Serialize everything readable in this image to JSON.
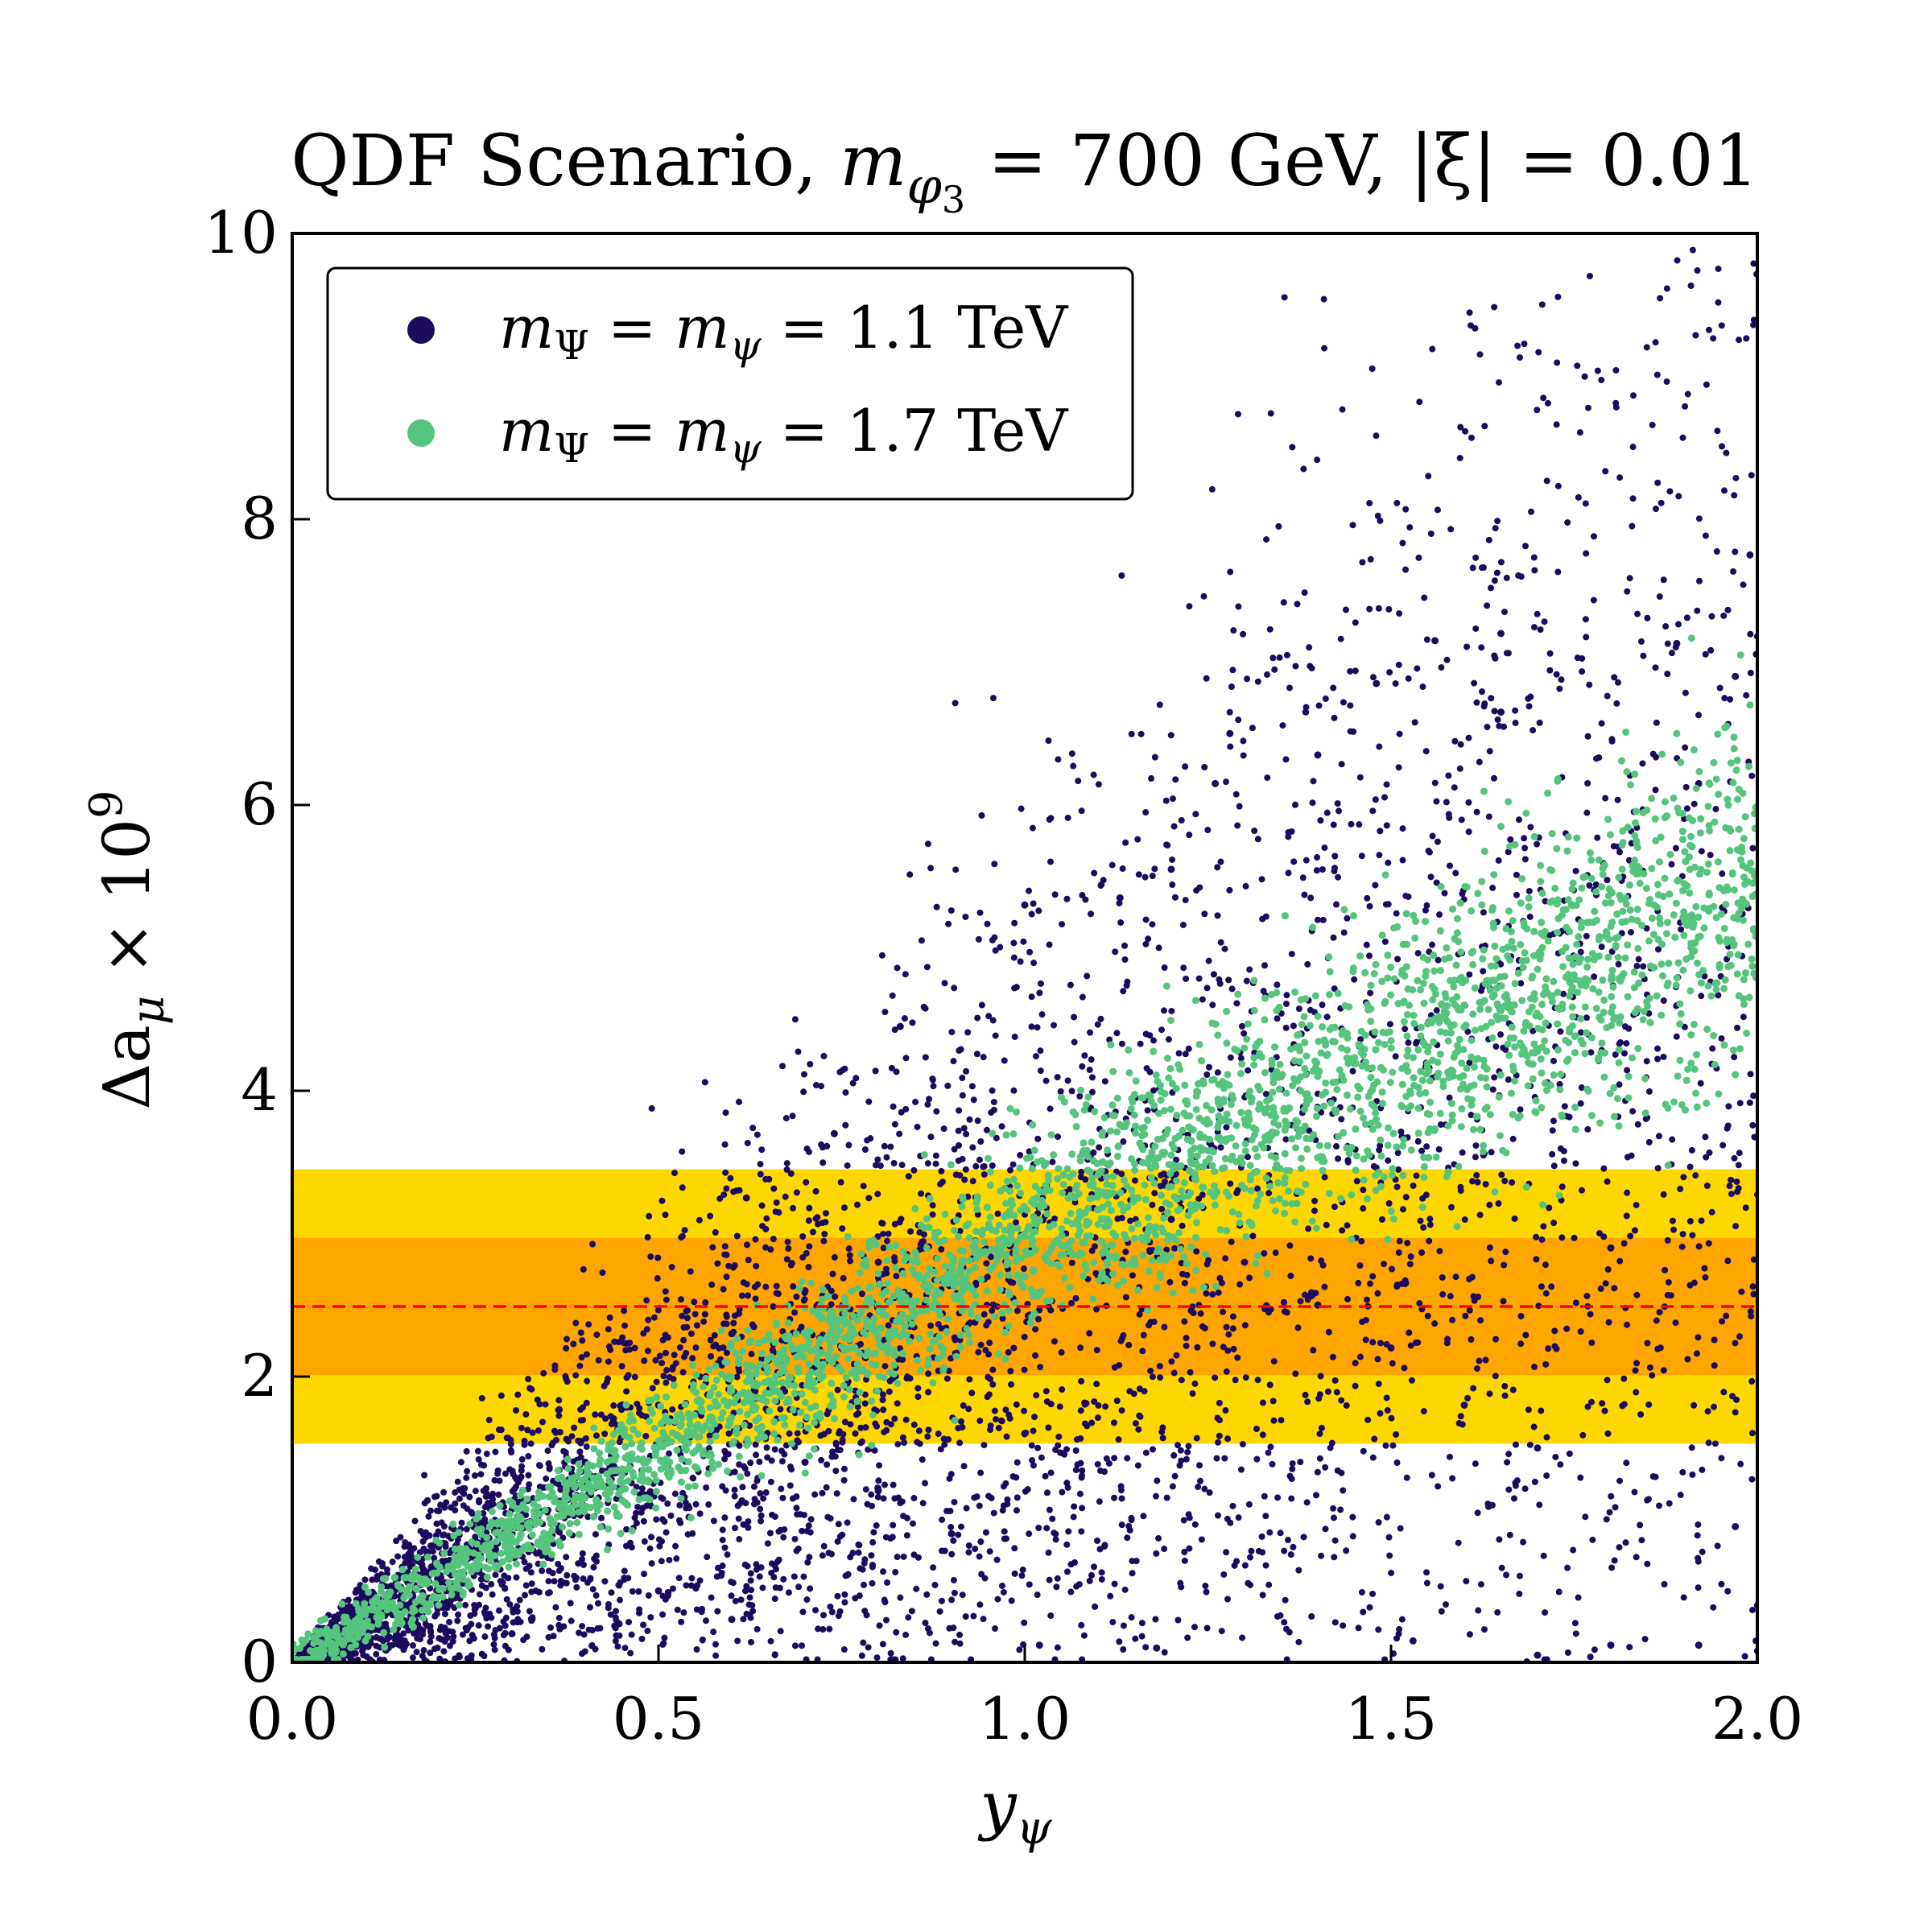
{
  "chart_data": {
    "type": "scatter",
    "title": {
      "prefix": "QDF Scenario, ",
      "m": "m",
      "phi": "φ",
      "phi_sub": "3",
      "mass_part": " = 700 GeV, ",
      "xi_part": "|ξ| = 0.01"
    },
    "xlabel": {
      "main": "y",
      "sub": "ψ"
    },
    "ylabel": {
      "pre": "Δa",
      "sub": "μ",
      "post": " × 10",
      "sup": "9"
    },
    "xlim": [
      0,
      2
    ],
    "ylim": [
      0,
      10
    ],
    "x_ticks": [
      {
        "value": 0,
        "label": "0.0"
      },
      {
        "value": 0.5,
        "label": "0.5"
      },
      {
        "value": 1,
        "label": "1.0"
      },
      {
        "value": 1.5,
        "label": "1.5"
      },
      {
        "value": 2,
        "label": "2.0"
      }
    ],
    "y_ticks": [
      {
        "value": 0,
        "label": "0"
      },
      {
        "value": 2,
        "label": "2"
      },
      {
        "value": 4,
        "label": "4"
      },
      {
        "value": 6,
        "label": "6"
      },
      {
        "value": 8,
        "label": "8"
      },
      {
        "value": 10,
        "label": "10"
      }
    ],
    "bands": [
      {
        "ymin": 1.53,
        "ymax": 3.45,
        "color": "#FFD700"
      },
      {
        "ymin": 2.01,
        "ymax": 2.97,
        "color": "#FFA500"
      }
    ],
    "reference_line": {
      "y": 2.49,
      "color": "#FF0000",
      "style": "dashed"
    },
    "legend": {
      "placement": "upper-left",
      "entries": [
        {
          "lhs": "m",
          "lhs_sub": "Ψ",
          "mid": "m",
          "mid_sub": "ψ",
          "rhs": "1.1 TeV",
          "color": "#1c0a5e"
        },
        {
          "lhs": "m",
          "lhs_sub": "Ψ",
          "mid": "m",
          "mid_sub": "ψ",
          "rhs": "1.7 TeV",
          "color": "#55c47c"
        }
      ]
    },
    "series": [
      {
        "label": "1.1 TeV",
        "color": "#1c0a5e",
        "representative_points": [
          [
            0.1,
            0.2
          ],
          [
            0.2,
            0.5
          ],
          [
            0.3,
            0.9
          ],
          [
            0.4,
            1.4
          ],
          [
            0.5,
            1.8
          ],
          [
            0.6,
            2.3
          ],
          [
            0.7,
            2.6
          ],
          [
            0.8,
            2.8
          ],
          [
            0.3,
            0.2
          ],
          [
            0.5,
            0.5
          ],
          [
            0.6,
            0.3
          ],
          [
            0.7,
            1.4
          ],
          [
            0.8,
            1.2
          ],
          [
            0.9,
            0.9
          ],
          [
            1.0,
            1.6
          ],
          [
            0.62,
            3.25
          ],
          [
            0.74,
            3.7
          ],
          [
            0.83,
            4.45
          ],
          [
            1.0,
            5.3
          ],
          [
            1.13,
            5.35
          ],
          [
            1.2,
            5.55
          ],
          [
            1.26,
            6.15
          ],
          [
            1.28,
            6.5
          ],
          [
            1.4,
            6.35
          ],
          [
            1.48,
            6.85
          ],
          [
            1.56,
            7.15
          ],
          [
            1.65,
            7.2
          ],
          [
            1.65,
            6.65
          ],
          [
            1.89,
            7.13
          ],
          [
            1.99,
            7.75
          ],
          [
            1.97,
            6.9
          ],
          [
            1.92,
            6.15
          ],
          [
            1.97,
            0.95
          ],
          [
            1.02,
            0.12
          ],
          [
            1.18,
            0.1
          ],
          [
            1.53,
            0.15
          ],
          [
            1.7,
            0.05
          ],
          [
            1.8,
            0.12
          ],
          [
            1.92,
            0.12
          ],
          [
            1.2,
            3.1
          ],
          [
            1.3,
            2.8
          ],
          [
            1.4,
            2.5
          ],
          [
            1.5,
            2.2
          ],
          [
            1.6,
            1.8
          ],
          [
            1.7,
            1.5
          ],
          [
            1.8,
            2.9
          ]
        ]
      },
      {
        "label": "1.7 TeV",
        "color": "#55c47c",
        "representative_points": [
          [
            0.1,
            0.15
          ],
          [
            0.2,
            0.4
          ],
          [
            0.3,
            0.75
          ],
          [
            0.4,
            1.15
          ],
          [
            0.5,
            1.55
          ],
          [
            0.6,
            1.9
          ],
          [
            0.7,
            2.2
          ],
          [
            0.8,
            2.5
          ],
          [
            0.9,
            2.75
          ],
          [
            1.0,
            3.0
          ],
          [
            1.1,
            3.3
          ],
          [
            1.2,
            3.55
          ],
          [
            1.3,
            3.8
          ],
          [
            1.4,
            4.1
          ],
          [
            1.5,
            4.35
          ],
          [
            1.6,
            4.6
          ],
          [
            1.7,
            4.85
          ],
          [
            1.8,
            5.15
          ],
          [
            1.9,
            5.45
          ],
          [
            1.99,
            6.7
          ],
          [
            1.89,
            6.5
          ],
          [
            1.65,
            5.85
          ],
          [
            1.72,
            5.8
          ],
          [
            1.44,
            4.4
          ],
          [
            1.59,
            3.05
          ]
        ]
      }
    ]
  }
}
